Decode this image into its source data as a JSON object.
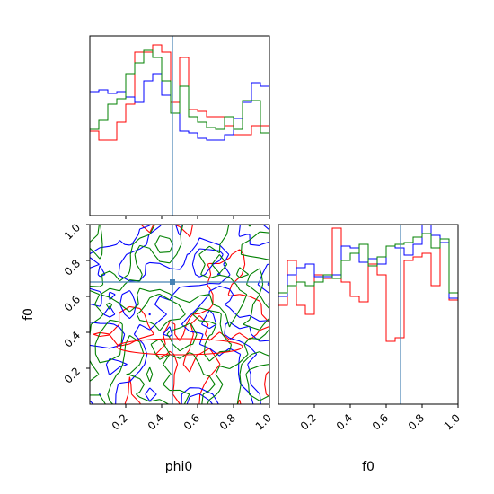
{
  "chart_data": {
    "type": "corner",
    "parameters": [
      "phi0",
      "f0"
    ],
    "truth": {
      "phi0": 0.46,
      "f0": 0.68
    },
    "truth_color": "#4682b4",
    "series": [
      {
        "color": "#ff0000"
      },
      {
        "color": "#0000ff"
      },
      {
        "color": "#008000"
      }
    ],
    "panels": [
      {
        "name": "hist-phi0",
        "param": "phi0",
        "xlim": [
          0,
          1
        ],
        "bins": [
          0,
          0.05,
          0.1,
          0.15,
          0.2,
          0.25,
          0.3,
          0.35,
          0.4,
          0.45,
          0.5,
          0.55,
          0.6,
          0.65,
          0.7,
          0.75,
          0.8,
          0.85,
          0.9,
          0.95,
          1.0
        ],
        "ymax": 1.0,
        "histograms": [
          [
            0.47,
            0.42,
            0.42,
            0.52,
            0.62,
            0.91,
            0.91,
            0.95,
            0.91,
            0.63,
            0.88,
            0.59,
            0.58,
            0.55,
            0.55,
            0.5,
            0.45,
            0.45,
            0.5,
            0.5
          ],
          [
            0.69,
            0.7,
            0.68,
            0.69,
            0.66,
            0.63,
            0.75,
            0.79,
            0.67,
            0.57,
            0.47,
            0.46,
            0.43,
            0.42,
            0.42,
            0.45,
            0.54,
            0.63,
            0.74,
            0.72
          ],
          [
            0.48,
            0.53,
            0.62,
            0.65,
            0.79,
            0.85,
            0.92,
            0.88,
            0.75,
            0.57,
            0.72,
            0.55,
            0.52,
            0.49,
            0.48,
            0.55,
            0.48,
            0.64,
            0.64,
            0.46
          ]
        ]
      },
      {
        "name": "hist-f0",
        "param": "f0",
        "xlim": [
          0,
          1
        ],
        "bins": [
          0,
          0.05,
          0.1,
          0.15,
          0.2,
          0.25,
          0.3,
          0.35,
          0.4,
          0.45,
          0.5,
          0.55,
          0.6,
          0.65,
          0.7,
          0.75,
          0.8,
          0.85,
          0.9,
          0.95,
          1.0
        ],
        "ymax": 1.0,
        "histograms": [
          [
            0.55,
            0.8,
            0.55,
            0.5,
            0.72,
            0.7,
            0.98,
            0.68,
            0.6,
            0.57,
            0.78,
            0.72,
            0.35,
            0.37,
            0.8,
            0.82,
            0.84,
            0.66,
            0.92,
            0.58
          ],
          [
            0.6,
            0.72,
            0.76,
            0.78,
            0.71,
            0.71,
            0.72,
            0.88,
            0.87,
            0.79,
            0.81,
            0.78,
            0.88,
            0.87,
            0.83,
            0.89,
            1.08,
            0.94,
            0.9,
            0.59
          ],
          [
            0.62,
            0.66,
            0.68,
            0.66,
            0.68,
            0.72,
            0.7,
            0.8,
            0.84,
            0.89,
            0.77,
            0.82,
            0.88,
            0.89,
            0.9,
            0.93,
            0.95,
            0.87,
            0.92,
            0.62
          ]
        ]
      },
      {
        "name": "contour-phi0-f0",
        "x_param": "phi0",
        "y_param": "f0",
        "xlim": [
          0,
          1
        ],
        "ylim": [
          0,
          1
        ],
        "xticks": [
          0.2,
          0.4,
          0.6,
          0.8,
          1.0
        ],
        "yticks": [
          0.2,
          0.4,
          0.6,
          0.8,
          1.0
        ],
        "xlabel": "phi0",
        "ylabel": "f0"
      }
    ],
    "f0_xlabel": "f0"
  }
}
